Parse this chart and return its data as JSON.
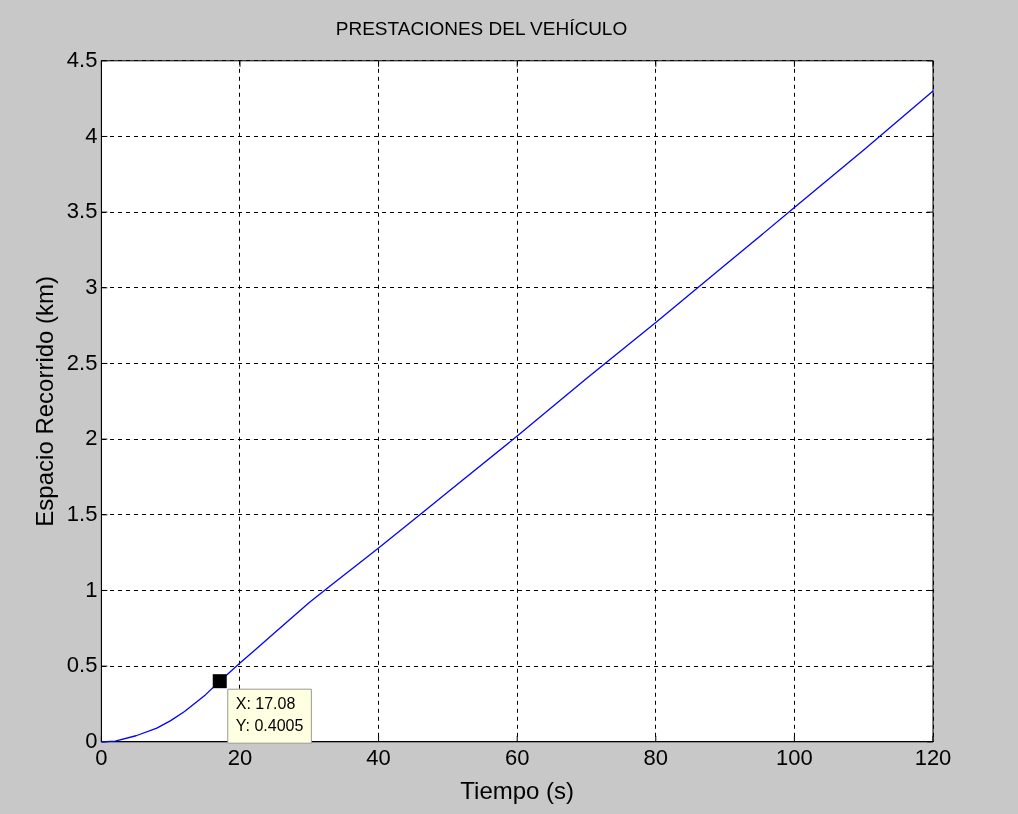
{
  "chart_data": {
    "type": "line",
    "title": "PRESTACIONES DEL VEHÍCULO",
    "xlabel": "Tiempo (s)",
    "ylabel": "Espacio Recorrido (km)",
    "x": [
      0,
      2,
      5,
      8,
      10,
      12,
      15,
      17.08,
      20,
      25,
      30,
      33,
      40,
      50,
      60,
      70,
      80,
      90,
      100,
      110,
      120
    ],
    "series": [
      {
        "color": "#0000ff",
        "values": [
          0,
          0.005,
          0.04,
          0.09,
          0.14,
          0.2,
          0.31,
          0.4,
          0.52,
          0.72,
          0.92,
          1.03,
          1.28,
          1.65,
          2.02,
          2.4,
          2.77,
          3.15,
          3.53,
          3.91,
          4.3
        ]
      }
    ],
    "xlim": [
      0,
      120
    ],
    "xticks": [
      0,
      20,
      40,
      60,
      80,
      100,
      120
    ],
    "ylim": [
      0,
      4.5
    ],
    "yticks": [
      0,
      0.5,
      1,
      1.5,
      2,
      2.5,
      3,
      3.5,
      4,
      4.5
    ],
    "grid": true,
    "line_style": "solid",
    "marker": "none",
    "legend": false,
    "annotations": [
      {
        "text": "X: 17.08\nY: 0.4005",
        "x": 17.08,
        "y": 0.4005
      }
    ]
  }
}
